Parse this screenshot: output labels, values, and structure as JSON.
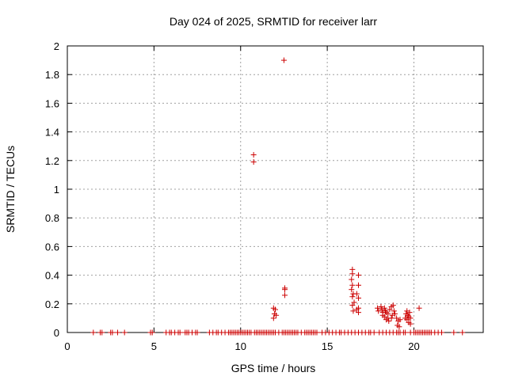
{
  "chart_data": {
    "type": "scatter",
    "title": "Day 024 of 2025, SRMTID for receiver larr",
    "xlabel": "GPS time / hours",
    "ylabel": "SRMTID / TECUs",
    "xlim": [
      0,
      24
    ],
    "ylim": [
      0,
      2
    ],
    "xticks": [
      0,
      5,
      10,
      15,
      20
    ],
    "xtick_labels": [
      "0",
      "5",
      "10",
      "15",
      "20"
    ],
    "yticks": [
      0,
      0.2,
      0.4,
      0.6,
      0.8,
      1,
      1.2,
      1.4,
      1.6,
      1.8,
      2
    ],
    "ytick_labels": [
      "0",
      "0.2",
      "0.4",
      "0.6",
      "0.8",
      "1",
      "1.2",
      "1.4",
      "1.6",
      "1.8",
      "2"
    ],
    "grid": true,
    "marker": "+",
    "color": "#cc0000",
    "series": [
      {
        "name": "SRMTID",
        "points": [
          [
            1.5,
            0
          ],
          [
            1.9,
            0
          ],
          [
            2.0,
            0
          ],
          [
            2.5,
            0
          ],
          [
            2.6,
            0
          ],
          [
            2.9,
            0
          ],
          [
            3.3,
            0
          ],
          [
            4.8,
            0
          ],
          [
            4.9,
            0
          ],
          [
            5.7,
            0
          ],
          [
            5.9,
            0
          ],
          [
            6.0,
            0
          ],
          [
            6.2,
            0
          ],
          [
            6.4,
            0
          ],
          [
            6.5,
            0
          ],
          [
            6.8,
            0
          ],
          [
            6.9,
            0
          ],
          [
            7.0,
            0
          ],
          [
            7.2,
            0
          ],
          [
            7.4,
            0
          ],
          [
            7.5,
            0
          ],
          [
            8.2,
            0
          ],
          [
            8.4,
            0
          ],
          [
            8.6,
            0
          ],
          [
            8.7,
            0
          ],
          [
            8.9,
            0
          ],
          [
            9.1,
            0
          ],
          [
            9.3,
            0
          ],
          [
            9.4,
            0
          ],
          [
            9.5,
            0
          ],
          [
            9.6,
            0
          ],
          [
            9.7,
            0
          ],
          [
            9.8,
            0
          ],
          [
            9.9,
            0
          ],
          [
            10.0,
            0
          ],
          [
            10.1,
            0
          ],
          [
            10.2,
            0
          ],
          [
            10.3,
            0
          ],
          [
            10.4,
            0
          ],
          [
            10.5,
            0
          ],
          [
            10.6,
            0
          ],
          [
            10.8,
            0
          ],
          [
            10.9,
            0
          ],
          [
            11.0,
            0
          ],
          [
            11.1,
            0
          ],
          [
            11.2,
            0
          ],
          [
            11.3,
            0
          ],
          [
            11.4,
            0
          ],
          [
            11.5,
            0
          ],
          [
            11.6,
            0
          ],
          [
            11.7,
            0
          ],
          [
            11.8,
            0
          ],
          [
            11.9,
            0
          ],
          [
            12.0,
            0
          ],
          [
            12.2,
            0
          ],
          [
            12.4,
            0
          ],
          [
            12.5,
            0
          ],
          [
            12.6,
            0
          ],
          [
            12.7,
            0
          ],
          [
            12.8,
            0
          ],
          [
            12.9,
            0
          ],
          [
            13.0,
            0
          ],
          [
            13.1,
            0
          ],
          [
            13.2,
            0
          ],
          [
            13.3,
            0
          ],
          [
            13.5,
            0
          ],
          [
            13.7,
            0
          ],
          [
            13.8,
            0
          ],
          [
            13.9,
            0
          ],
          [
            14.0,
            0
          ],
          [
            14.1,
            0
          ],
          [
            14.2,
            0
          ],
          [
            14.3,
            0
          ],
          [
            14.4,
            0
          ],
          [
            14.7,
            0
          ],
          [
            14.9,
            0
          ],
          [
            15.1,
            0
          ],
          [
            15.3,
            0
          ],
          [
            15.5,
            0
          ],
          [
            15.7,
            0
          ],
          [
            15.8,
            0
          ],
          [
            16.0,
            0
          ],
          [
            16.2,
            0
          ],
          [
            16.4,
            0
          ],
          [
            16.6,
            0
          ],
          [
            16.8,
            0
          ],
          [
            17.0,
            0
          ],
          [
            17.2,
            0
          ],
          [
            17.4,
            0
          ],
          [
            17.5,
            0
          ],
          [
            17.7,
            0
          ],
          [
            18.0,
            0
          ],
          [
            18.2,
            0
          ],
          [
            18.4,
            0
          ],
          [
            18.6,
            0
          ],
          [
            18.8,
            0
          ],
          [
            19.0,
            0
          ],
          [
            19.1,
            0
          ],
          [
            19.2,
            0
          ],
          [
            19.4,
            0
          ],
          [
            19.5,
            0
          ],
          [
            19.8,
            0
          ],
          [
            20.0,
            0
          ],
          [
            20.1,
            0
          ],
          [
            20.2,
            0
          ],
          [
            20.3,
            0
          ],
          [
            20.4,
            0
          ],
          [
            20.5,
            0
          ],
          [
            20.6,
            0
          ],
          [
            20.7,
            0
          ],
          [
            20.8,
            0
          ],
          [
            20.9,
            0
          ],
          [
            21.0,
            0
          ],
          [
            21.2,
            0
          ],
          [
            21.4,
            0
          ],
          [
            21.6,
            0
          ],
          [
            22.3,
            0
          ],
          [
            22.8,
            0
          ],
          [
            10.75,
            1.24
          ],
          [
            10.75,
            1.19
          ],
          [
            12.5,
            1.9
          ],
          [
            11.9,
            0.17
          ],
          [
            12.0,
            0.16
          ],
          [
            11.95,
            0.13
          ],
          [
            11.9,
            0.1
          ],
          [
            12.05,
            0.12
          ],
          [
            12.55,
            0.31
          ],
          [
            12.55,
            0.3
          ],
          [
            12.55,
            0.26
          ],
          [
            16.45,
            0.44
          ],
          [
            16.45,
            0.41
          ],
          [
            16.4,
            0.37
          ],
          [
            16.45,
            0.33
          ],
          [
            16.4,
            0.3
          ],
          [
            16.5,
            0.27
          ],
          [
            16.45,
            0.25
          ],
          [
            16.55,
            0.21
          ],
          [
            16.45,
            0.19
          ],
          [
            16.5,
            0.15
          ],
          [
            16.8,
            0.4
          ],
          [
            16.8,
            0.33
          ],
          [
            16.7,
            0.27
          ],
          [
            16.8,
            0.24
          ],
          [
            16.8,
            0.17
          ],
          [
            16.7,
            0.16
          ],
          [
            16.8,
            0.14
          ],
          [
            17.9,
            0.17
          ],
          [
            17.95,
            0.15
          ],
          [
            18.1,
            0.18
          ],
          [
            18.15,
            0.16
          ],
          [
            18.2,
            0.14
          ],
          [
            18.2,
            0.12
          ],
          [
            18.3,
            0.17
          ],
          [
            18.35,
            0.15
          ],
          [
            18.3,
            0.11
          ],
          [
            18.4,
            0.09
          ],
          [
            18.4,
            0.14
          ],
          [
            18.5,
            0.13
          ],
          [
            18.5,
            0.1
          ],
          [
            18.55,
            0.08
          ],
          [
            18.6,
            0.16
          ],
          [
            18.7,
            0.18
          ],
          [
            18.8,
            0.19
          ],
          [
            18.85,
            0.15
          ],
          [
            18.75,
            0.12
          ],
          [
            18.7,
            0.1
          ],
          [
            18.9,
            0.13
          ],
          [
            19.0,
            0.1
          ],
          [
            19.1,
            0.08
          ],
          [
            19.05,
            0.05
          ],
          [
            19.15,
            0.04
          ],
          [
            19.2,
            0.09
          ],
          [
            19.5,
            0.1
          ],
          [
            19.55,
            0.13
          ],
          [
            19.6,
            0.15
          ],
          [
            19.65,
            0.12
          ],
          [
            19.7,
            0.11
          ],
          [
            19.6,
            0.09
          ],
          [
            19.75,
            0.14
          ],
          [
            19.8,
            0.1
          ],
          [
            19.7,
            0.07
          ],
          [
            19.8,
            0.06
          ],
          [
            20.3,
            0.17
          ]
        ]
      }
    ]
  }
}
